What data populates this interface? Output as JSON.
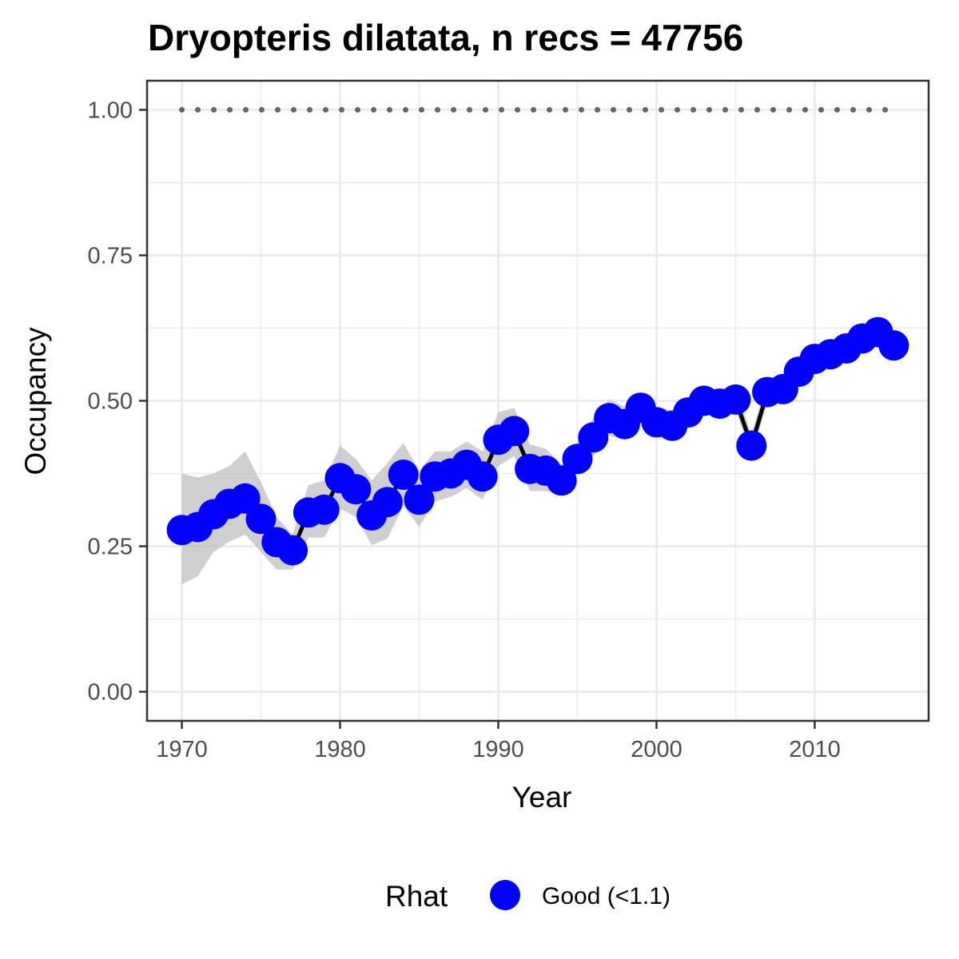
{
  "chart_data": {
    "type": "line",
    "title": "Dryopteris dilatata, n recs = 47756",
    "xlabel": "Year",
    "ylabel": "Occupancy",
    "xlim": [
      1967.8,
      2017.2
    ],
    "ylim": [
      -0.05,
      1.05
    ],
    "x_ticks": [
      1970,
      1980,
      1990,
      2000,
      2010
    ],
    "x_tick_labels": [
      "1970",
      "1980",
      "1990",
      "2000",
      "2010"
    ],
    "y_ticks": [
      0,
      0.25,
      0.5,
      0.75,
      1.0
    ],
    "y_tick_labels": [
      "0.00",
      "0.25",
      "0.50",
      "0.75",
      "1.00"
    ],
    "grid": true,
    "x": [
      1970,
      1971,
      1972,
      1973,
      1974,
      1975,
      1976,
      1977,
      1978,
      1979,
      1980,
      1981,
      1982,
      1983,
      1984,
      1985,
      1986,
      1987,
      1988,
      1989,
      1990,
      1991,
      1992,
      1993,
      1994,
      1995,
      1996,
      1997,
      1998,
      1999,
      2000,
      2001,
      2002,
      2003,
      2004,
      2005,
      2006,
      2007,
      2008,
      2009,
      2010,
      2011,
      2012,
      2013,
      2014,
      2015
    ],
    "series": [
      {
        "values": [
          0.278,
          0.283,
          0.305,
          0.323,
          0.332,
          0.297,
          0.257,
          0.243,
          0.308,
          0.313,
          0.367,
          0.348,
          0.303,
          0.326,
          0.373,
          0.33,
          0.37,
          0.375,
          0.39,
          0.37,
          0.433,
          0.448,
          0.383,
          0.38,
          0.363,
          0.4,
          0.437,
          0.47,
          0.46,
          0.488,
          0.463,
          0.457,
          0.48,
          0.5,
          0.495,
          0.502,
          0.423,
          0.515,
          0.52,
          0.55,
          0.572,
          0.58,
          0.59,
          0.607,
          0.618,
          0.595
        ],
        "lower": [
          0.185,
          0.198,
          0.24,
          0.258,
          0.27,
          0.24,
          0.21,
          0.21,
          0.265,
          0.265,
          0.315,
          0.3,
          0.252,
          0.263,
          0.32,
          0.283,
          0.327,
          0.335,
          0.35,
          0.33,
          0.388,
          0.405,
          0.345,
          0.345,
          0.34,
          0.375,
          0.405,
          0.44,
          0.432,
          0.462,
          0.438,
          0.432,
          0.458,
          0.48,
          0.478,
          0.485,
          0.405,
          0.495,
          0.5,
          0.53,
          0.553,
          0.562,
          0.57,
          0.588,
          0.6,
          0.577
        ],
        "upper": [
          0.375,
          0.368,
          0.375,
          0.388,
          0.413,
          0.36,
          0.3,
          0.27,
          0.355,
          0.363,
          0.423,
          0.4,
          0.363,
          0.393,
          0.428,
          0.38,
          0.413,
          0.413,
          0.43,
          0.413,
          0.48,
          0.488,
          0.425,
          0.418,
          0.39,
          0.428,
          0.47,
          0.502,
          0.49,
          0.515,
          0.49,
          0.483,
          0.503,
          0.52,
          0.513,
          0.522,
          0.443,
          0.535,
          0.54,
          0.57,
          0.592,
          0.6,
          0.61,
          0.627,
          0.637,
          0.613
        ],
        "reference_value": 1.0
      }
    ],
    "legend": {
      "title": "Rhat",
      "entries": [
        "Good (<1.1)"
      ],
      "position": "bottom"
    },
    "colors": {
      "point": "#0000ff",
      "line": "#000000",
      "ribbon": "#bfbfbf",
      "reference": "#666666",
      "grid": "#ebebeb",
      "panel_border": "#333333"
    }
  }
}
